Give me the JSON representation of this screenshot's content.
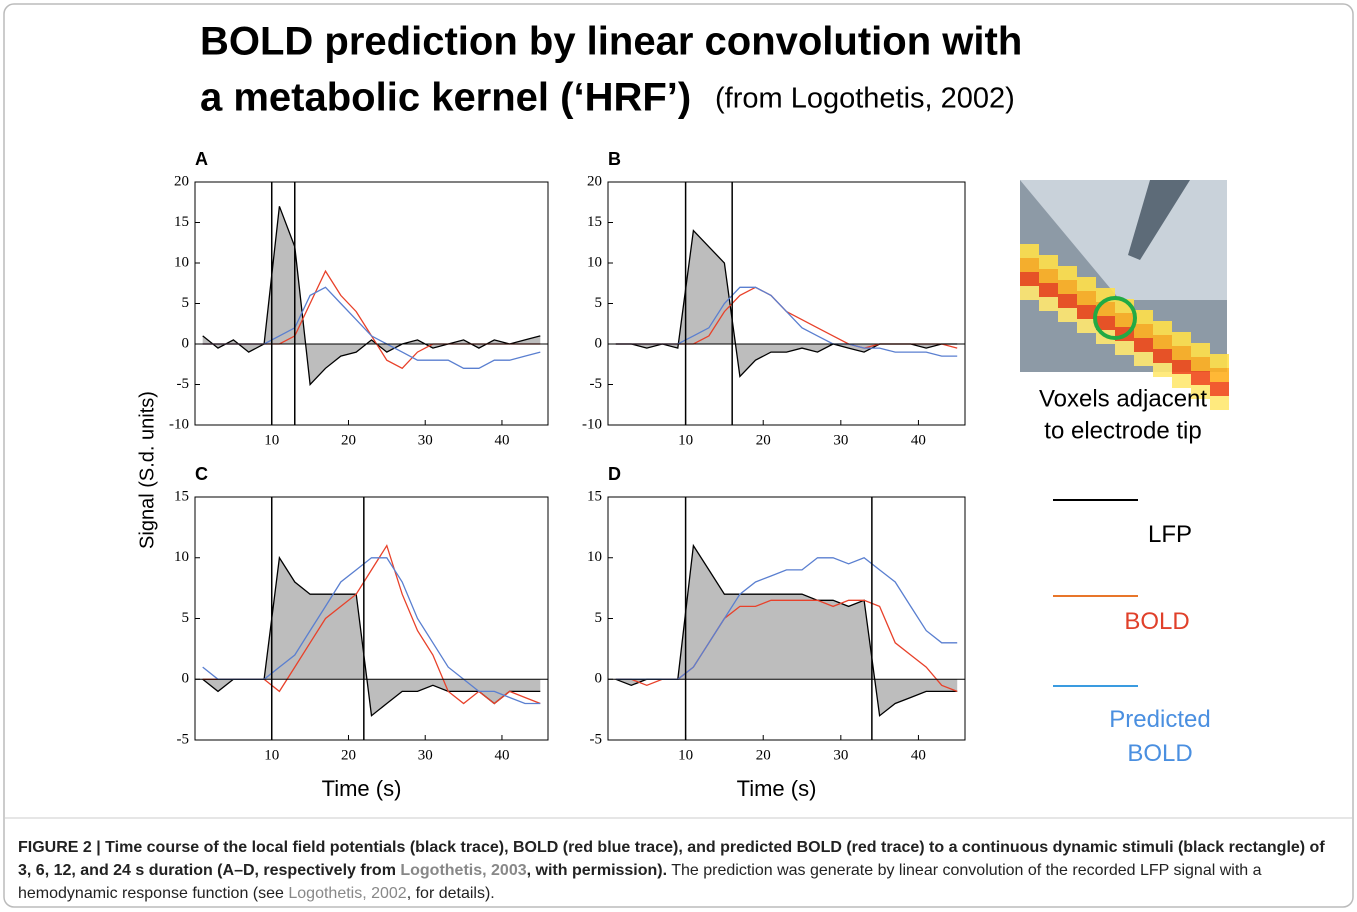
{
  "title_lines": [
    "BOLD prediction by linear convolution with",
    "a metabolic kernel (‘HRF’)"
  ],
  "source_note": "(from Logothetis, 2002)",
  "ylabel": "Signal  (S.d. units)",
  "image_caption": [
    "Voxels adjacent",
    "to electrode tip"
  ],
  "legend": [
    {
      "label": "LFP",
      "line_color": "#000000",
      "text_color": "#000000"
    },
    {
      "label": "BOLD",
      "line_color": "#e8762a",
      "text_color": "#e0402a"
    },
    {
      "label": "Predicted BOLD",
      "line_color": "#3a9be0",
      "text_color": "#4a8fe0"
    }
  ],
  "caption": [
    "FIGURE 2 | Time course of the local field potentials (black trace), BOLD (red blue trace), and predicted BOLD (red trace) to a continuous dynamic stimuli (black rectangle) of 3, 6, 12, and 24 s duration (A–D, respectively from ",
    "Logothetis, 2003",
    ", with permission).",
    " The prediction was generate by linear convolution of the recorded LFP signal with a hemodynamic response function (see ",
    "Logothetis, 2002",
    ", for details)."
  ],
  "chart_data": [
    {
      "type": "line",
      "label": "A",
      "xlim": [
        0,
        46
      ],
      "ylim": [
        -10,
        20
      ],
      "xticks": [
        10,
        20,
        30,
        40
      ],
      "yticks": [
        -10,
        -5,
        0,
        5,
        10,
        15,
        20
      ],
      "stimulus": [
        10,
        13
      ],
      "x": [
        1,
        3,
        5,
        7,
        9,
        11,
        13,
        15,
        17,
        19,
        21,
        23,
        25,
        27,
        29,
        31,
        33,
        35,
        37,
        39,
        41,
        43,
        45
      ],
      "series": [
        {
          "color": "#000000",
          "fill": "#bdbdbd",
          "values": [
            1,
            -0.5,
            0.5,
            -1,
            0,
            17,
            12,
            -5,
            -3,
            -1.5,
            -1,
            0.5,
            -1,
            0,
            0.5,
            -0.5,
            0,
            0.5,
            -0.5,
            0.5,
            0,
            0.5,
            1
          ]
        },
        {
          "color": "#e8412a",
          "values": [
            0,
            0,
            0,
            0,
            0,
            0,
            1,
            5,
            9,
            6,
            4,
            1,
            -2,
            -3,
            -1,
            0,
            0,
            0,
            0,
            0,
            0,
            0,
            0
          ]
        },
        {
          "color": "#5a7fd0",
          "values": [
            0,
            0,
            0,
            0,
            0,
            1,
            2,
            6,
            7,
            5,
            3,
            1,
            0,
            -1,
            -2,
            -2,
            -2,
            -3,
            -3,
            -2,
            -2,
            -1.5,
            -1
          ]
        }
      ]
    },
    {
      "type": "line",
      "label": "B",
      "xlim": [
        0,
        46
      ],
      "ylim": [
        -10,
        20
      ],
      "xticks": [
        10,
        20,
        30,
        40
      ],
      "yticks": [
        -10,
        -5,
        0,
        5,
        10,
        15,
        20
      ],
      "stimulus": [
        10,
        16
      ],
      "x": [
        1,
        3,
        5,
        7,
        9,
        11,
        13,
        15,
        17,
        19,
        21,
        23,
        25,
        27,
        29,
        31,
        33,
        35,
        37,
        39,
        41,
        43,
        45
      ],
      "series": [
        {
          "color": "#000000",
          "fill": "#bdbdbd",
          "values": [
            0,
            0,
            -0.5,
            0,
            -0.5,
            14,
            12,
            10,
            -4,
            -2,
            -1,
            -1,
            -0.5,
            -1,
            0,
            -0.5,
            -1,
            0,
            0,
            0,
            -0.5,
            0,
            0
          ]
        },
        {
          "color": "#e8412a",
          "values": [
            0,
            0,
            0,
            0,
            0,
            0,
            1,
            4,
            6,
            7,
            6,
            4,
            3,
            2,
            1,
            0,
            -0.5,
            0,
            0,
            0,
            0,
            0,
            -0.5
          ]
        },
        {
          "color": "#5a7fd0",
          "values": [
            0,
            0,
            0,
            0,
            0,
            1,
            2,
            5,
            7,
            7,
            6,
            4,
            2,
            1,
            0,
            0,
            -0.5,
            -0.5,
            -1,
            -1,
            -1,
            -1.5,
            -1.5
          ]
        }
      ]
    },
    {
      "type": "line",
      "label": "C",
      "xlabel": "Time (s)",
      "xlim": [
        0,
        46
      ],
      "ylim": [
        -5,
        15
      ],
      "xticks": [
        10,
        20,
        30,
        40
      ],
      "yticks": [
        -5,
        0,
        5,
        10,
        15
      ],
      "stimulus": [
        10,
        22
      ],
      "x": [
        1,
        3,
        5,
        7,
        9,
        11,
        13,
        15,
        17,
        19,
        21,
        23,
        25,
        27,
        29,
        31,
        33,
        35,
        37,
        39,
        41,
        43,
        45
      ],
      "series": [
        {
          "color": "#000000",
          "fill": "#bdbdbd",
          "values": [
            0,
            -1,
            0,
            0,
            0,
            10,
            8,
            7,
            7,
            7,
            7,
            -3,
            -2,
            -1,
            -1,
            -0.5,
            -1,
            -1,
            -1,
            -2,
            -1,
            -1,
            -1
          ]
        },
        {
          "color": "#e8412a",
          "values": [
            0,
            0,
            0,
            0,
            0,
            -1,
            1,
            3,
            5,
            6,
            7,
            9,
            11,
            7,
            4,
            2,
            -1,
            -2,
            -1,
            -2,
            -1,
            -1.5,
            -2
          ]
        },
        {
          "color": "#5a7fd0",
          "values": [
            1,
            0,
            0,
            0,
            0,
            1,
            2,
            4,
            6,
            8,
            9,
            10,
            10,
            8,
            5,
            3,
            1,
            0,
            -1,
            -1,
            -1.5,
            -2,
            -2
          ]
        }
      ]
    },
    {
      "type": "line",
      "label": "D",
      "xlabel": "Time (s)",
      "xlim": [
        0,
        46
      ],
      "ylim": [
        -5,
        15
      ],
      "xticks": [
        10,
        20,
        30,
        40
      ],
      "yticks": [
        -5,
        0,
        5,
        10,
        15
      ],
      "stimulus": [
        10,
        34
      ],
      "x": [
        1,
        3,
        5,
        7,
        9,
        11,
        13,
        15,
        17,
        19,
        21,
        23,
        25,
        27,
        29,
        31,
        33,
        35,
        37,
        39,
        41,
        43,
        45
      ],
      "series": [
        {
          "color": "#000000",
          "fill": "#bdbdbd",
          "values": [
            0,
            -0.5,
            0,
            0,
            0,
            11,
            9,
            7,
            7,
            7,
            7,
            7,
            7,
            6.5,
            6.5,
            6,
            6.5,
            -3,
            -2,
            -1.5,
            -1,
            -1,
            -1
          ]
        },
        {
          "color": "#e8412a",
          "values": [
            0,
            0,
            -0.5,
            0,
            0,
            1,
            3,
            5,
            6,
            6,
            6.5,
            6.5,
            6.5,
            6.5,
            6,
            6.5,
            6.5,
            6,
            3,
            2,
            1,
            -0.5,
            -1
          ]
        },
        {
          "color": "#5a7fd0",
          "values": [
            0,
            0,
            0,
            0,
            0,
            1,
            3,
            5,
            7,
            8,
            8.5,
            9,
            9,
            10,
            10,
            9.5,
            10,
            9,
            8,
            6,
            4,
            3,
            3
          ]
        }
      ]
    }
  ]
}
